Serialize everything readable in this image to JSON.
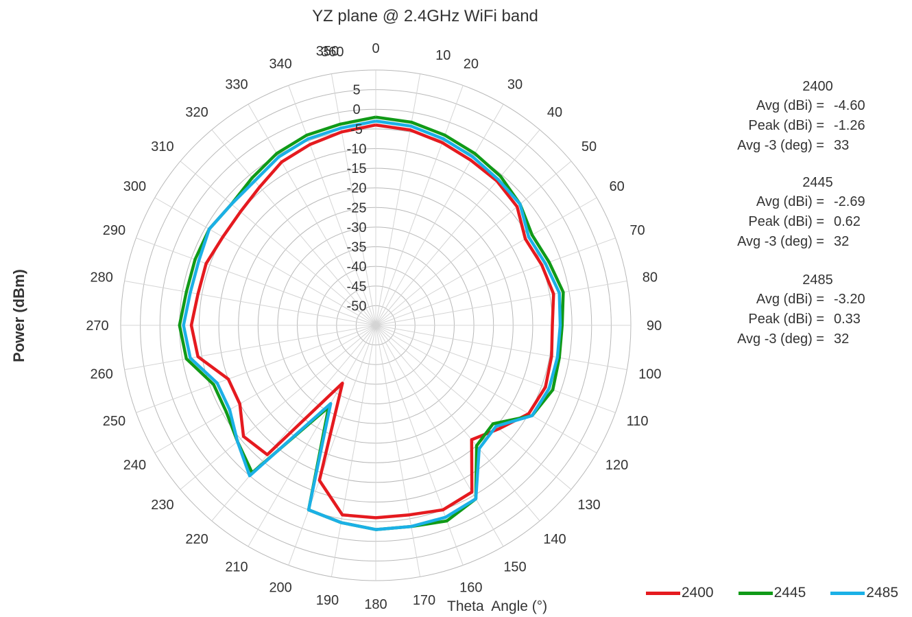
{
  "chart_data": {
    "type": "polar-line",
    "title": "YZ plane @ 2.4GHz WiFi band",
    "ylabel": "Power (dBm)",
    "xlabel": "Theta  Angle (°)",
    "radial_ticks": [
      "5",
      "0",
      "-5",
      "-10",
      "-15",
      "-20",
      "-25",
      "-30",
      "-35",
      "-40",
      "-45",
      "-50"
    ],
    "angle_ticks": [
      "0",
      "10",
      "20",
      "30",
      "40",
      "50",
      "60",
      "70",
      "80",
      "90",
      "100",
      "110",
      "120",
      "130",
      "140",
      "150",
      "160",
      "170",
      "180",
      "190",
      "200",
      "210",
      "220",
      "230",
      "240",
      "250",
      "260",
      "270",
      "280",
      "290",
      "300",
      "310",
      "320",
      "330",
      "340",
      "350",
      "360"
    ],
    "angles": [
      0,
      10,
      20,
      30,
      40,
      50,
      60,
      70,
      80,
      90,
      100,
      110,
      120,
      130,
      140,
      150,
      160,
      170,
      180,
      190,
      200,
      210,
      220,
      230,
      240,
      250,
      260,
      270,
      280,
      290,
      300,
      310,
      320,
      330,
      340,
      350,
      360
    ],
    "rmin": -55,
    "rmax": 10,
    "legend_position": "bottom-right",
    "series": [
      {
        "name": "2400",
        "color": "#e51a1f",
        "values": [
          -4.0,
          -4.5,
          -5.5,
          -6.5,
          -7,
          -8,
          -11,
          -10,
          -9,
          -10,
          -9.5,
          -9,
          -10,
          -14,
          -17,
          -6,
          -5,
          -6,
          -6,
          -6,
          -13,
          -38,
          -12,
          -11,
          -15,
          -15,
          -9,
          -8,
          -9,
          -9,
          -10,
          -10,
          -9,
          -7,
          -6,
          -5,
          -4.0
        ]
      },
      {
        "name": "2445",
        "color": "#109a17",
        "values": [
          -2.0,
          -2.5,
          -3.5,
          -4.5,
          -5.5,
          -7,
          -9,
          -8,
          -6.5,
          -7.5,
          -7.5,
          -7,
          -9,
          -16,
          -15,
          -4,
          -2,
          -3,
          -3,
          -4,
          -5,
          -31,
          -6,
          -9,
          -11,
          -11,
          -6,
          -5,
          -6,
          -6,
          -6,
          -7,
          -6,
          -4.5,
          -3.5,
          -3,
          -2.0
        ]
      },
      {
        "name": "2485",
        "color": "#1bb0e6",
        "values": [
          -3.0,
          -3.5,
          -4.5,
          -5.5,
          -6.5,
          -7,
          -10,
          -9,
          -7.5,
          -8,
          -8,
          -8,
          -9,
          -15,
          -14,
          -4,
          -3,
          -3,
          -3,
          -4,
          -5,
          -32,
          -5,
          -9,
          -12,
          -12,
          -7,
          -6,
          -7,
          -7,
          -6,
          -7,
          -7,
          -5.5,
          -4.5,
          -4,
          -3.0
        ]
      }
    ],
    "annotations": [
      {
        "header": "2400",
        "rows": [
          {
            "label": "Avg (dBi) =",
            "value": "-4.60"
          },
          {
            "label": "Peak (dBi) =",
            "value": "-1.26"
          },
          {
            "label": "Avg -3 (deg) =",
            "value": "33"
          }
        ]
      },
      {
        "header": "2445",
        "rows": [
          {
            "label": "Avg (dBi) =",
            "value": "-2.69"
          },
          {
            "label": "Peak (dBi) =",
            "value": "0.62"
          },
          {
            "label": "Avg -3 (deg) =",
            "value": "32"
          }
        ]
      },
      {
        "header": "2485",
        "rows": [
          {
            "label": "Avg (dBi) =",
            "value": "-3.20"
          },
          {
            "label": "Peak (dBi) =",
            "value": "0.33"
          },
          {
            "label": "Avg -3 (deg) =",
            "value": "32"
          }
        ]
      }
    ]
  }
}
